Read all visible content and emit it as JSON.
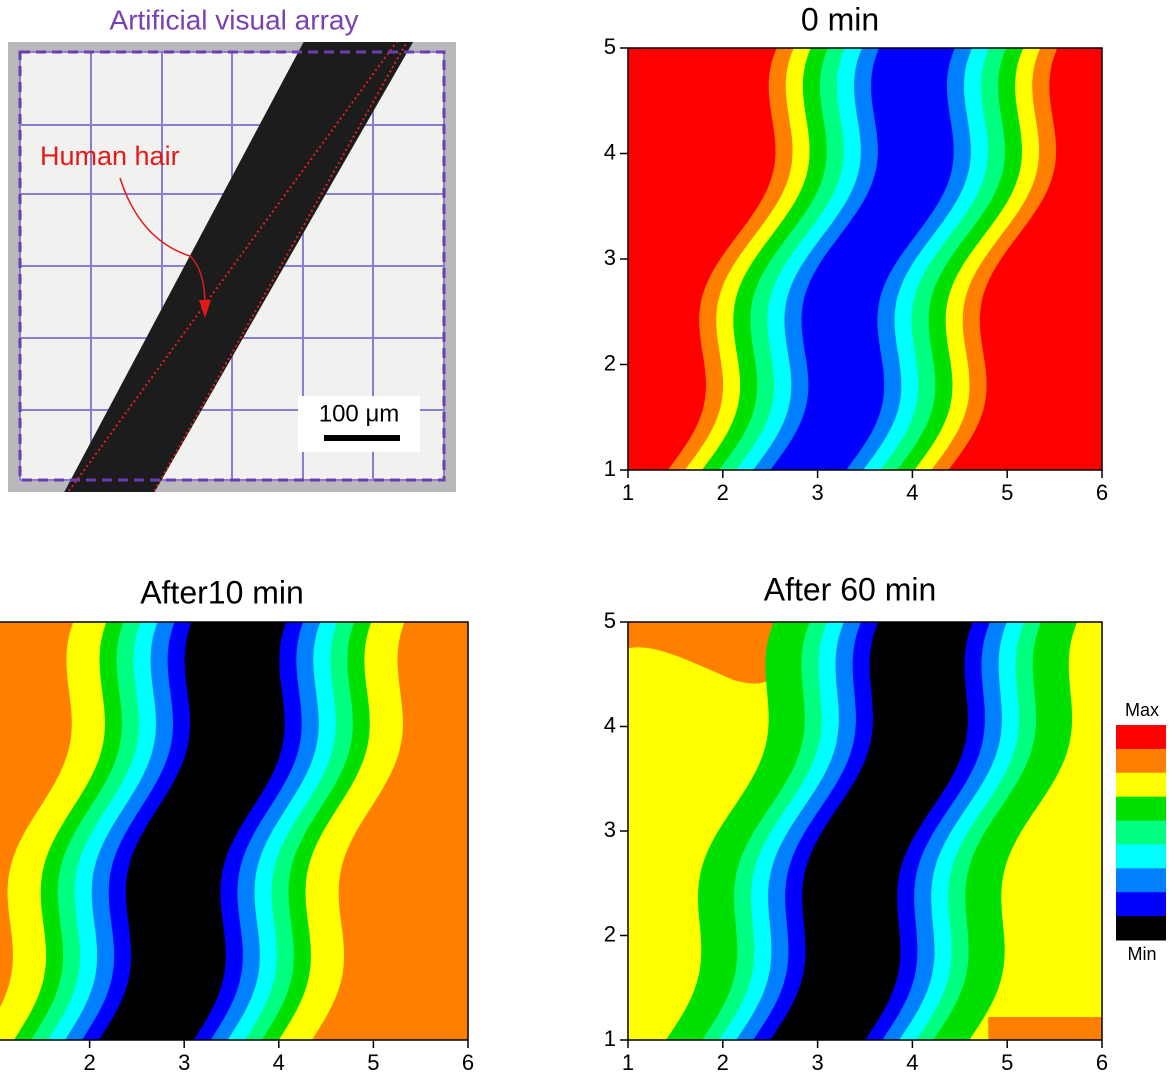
{
  "chart_data": [
    {
      "type": "image",
      "title": "Artificial visual array",
      "annotation": "Human hair",
      "scale_bar": "100 μm"
    },
    {
      "type": "contour",
      "title": "0 min",
      "xlim": [
        1,
        6
      ],
      "ylim": [
        1,
        5
      ],
      "xticks": [
        1,
        2,
        3,
        4,
        5,
        6
      ],
      "yticks": [
        1,
        2,
        3,
        4,
        5
      ]
    },
    {
      "type": "contour",
      "title": "After10 min",
      "xlim": [
        1,
        6
      ],
      "ylim": [
        1,
        5
      ],
      "xticks": [
        2,
        3,
        4,
        5,
        6
      ]
    },
    {
      "type": "contour",
      "title": "After 60 min",
      "xlim": [
        1,
        6
      ],
      "ylim": [
        1,
        5
      ],
      "xticks": [
        1,
        2,
        3,
        4,
        5,
        6
      ],
      "yticks": [
        1,
        2,
        3,
        4,
        5
      ]
    },
    {
      "type": "colorbar",
      "max_label": "Max",
      "min_label": "Min",
      "colors": [
        "#ff0000",
        "#ff8000",
        "#ffff00",
        "#00e000",
        "#00ff80",
        "#00ffff",
        "#0080ff",
        "#0000ff",
        "#000000"
      ]
    }
  ]
}
